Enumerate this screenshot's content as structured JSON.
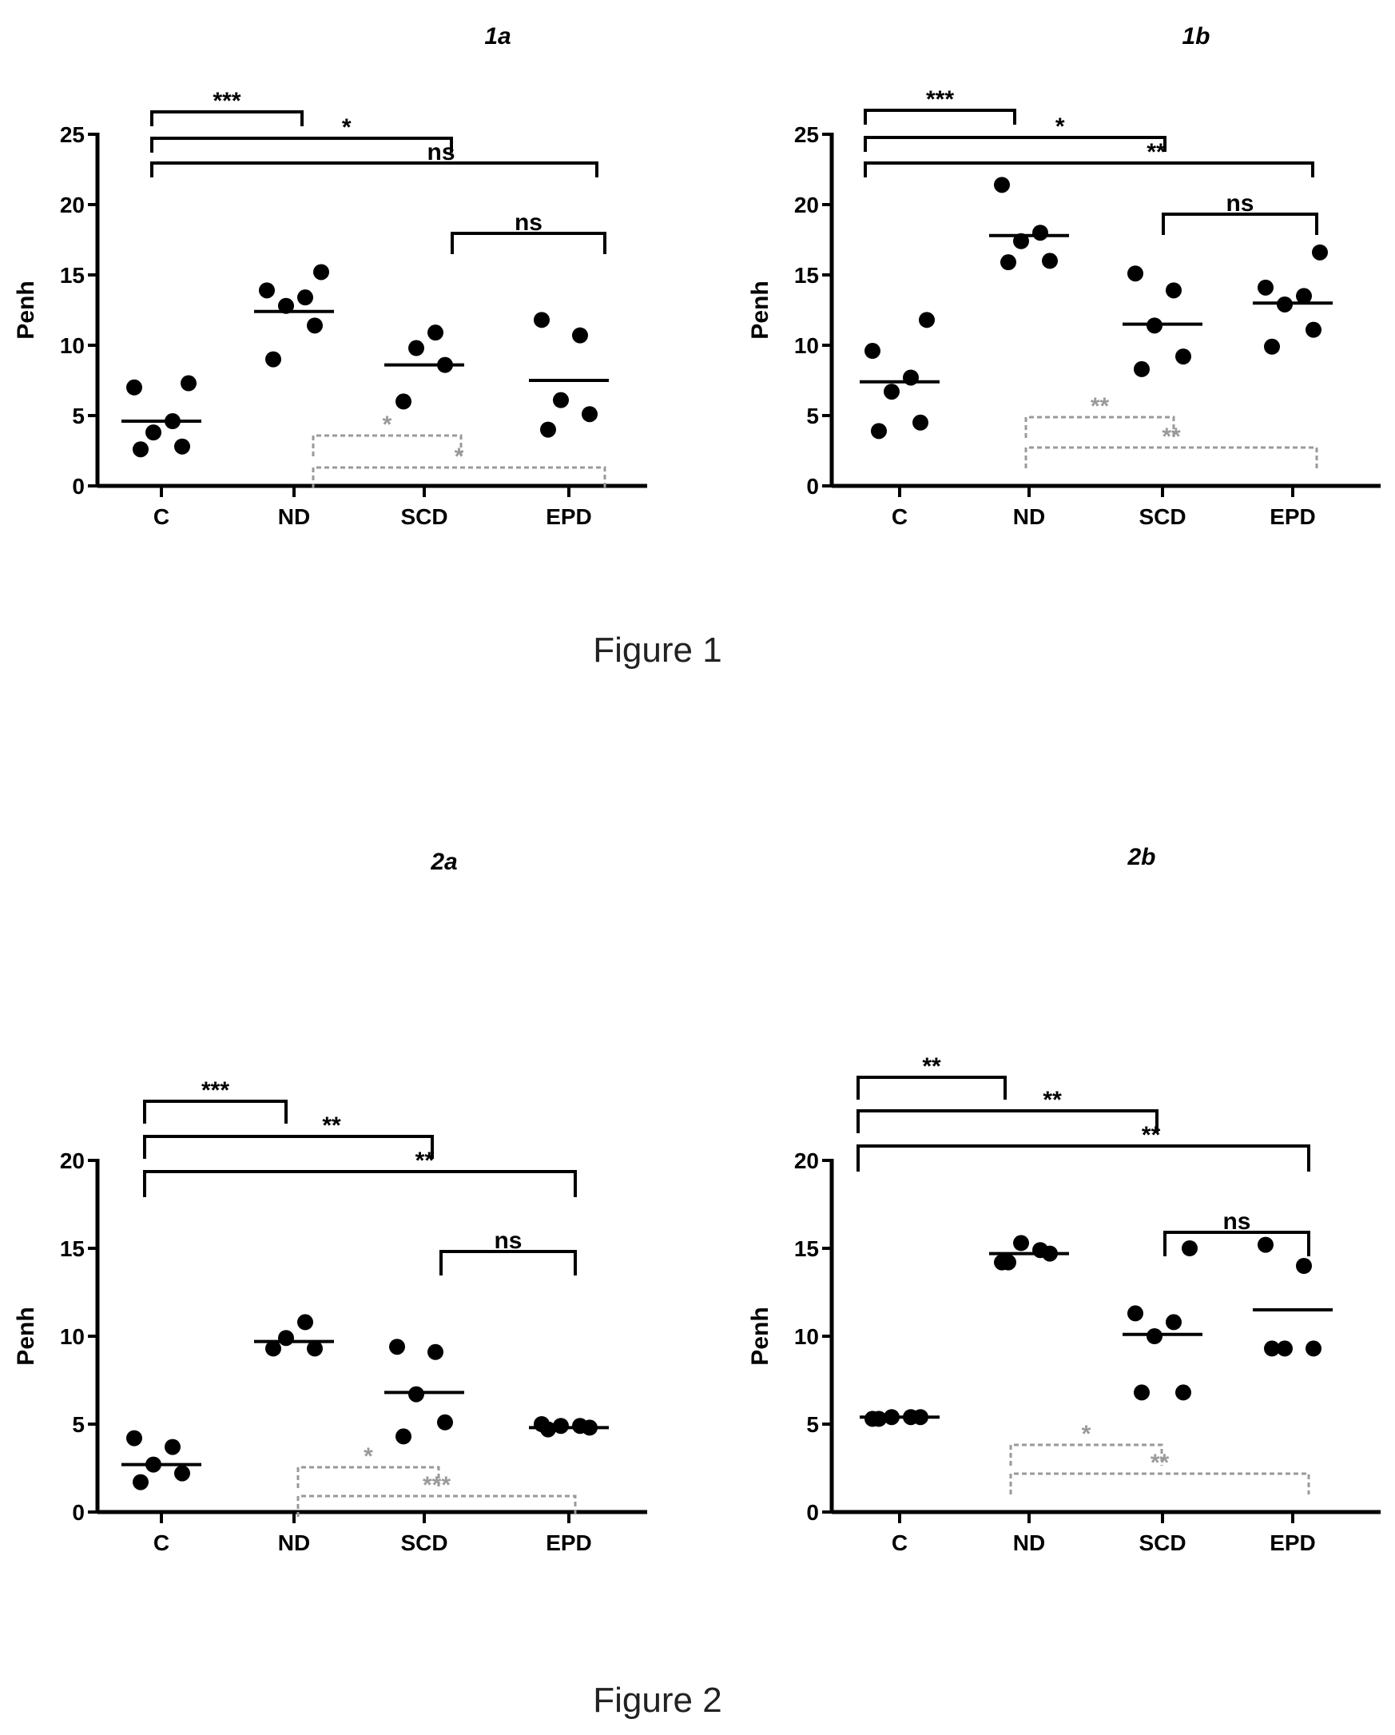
{
  "figures": [
    {
      "caption": "Figure 1"
    },
    {
      "caption": "Figure 2"
    }
  ],
  "chart_data": [
    {
      "type": "scatter",
      "title": "1a",
      "ylabel": "Penh",
      "ylim": [
        0,
        25
      ],
      "yticks": [
        "0",
        "5",
        "10",
        "15",
        "20",
        "25"
      ],
      "categories": [
        "C",
        "ND",
        "SCD",
        "EPD"
      ],
      "points": [
        [
          2.6,
          2.8,
          3.8,
          4.6,
          7.0,
          7.3
        ],
        [
          9.0,
          11.4,
          12.8,
          13.4,
          13.9,
          15.2
        ],
        [
          6.0,
          8.6,
          9.8,
          10.9
        ],
        [
          4.0,
          5.1,
          6.1,
          10.7,
          11.8
        ]
      ],
      "medians": [
        4.6,
        12.4,
        8.6,
        7.5
      ],
      "comparisons": [
        {
          "from": 0,
          "to": 1,
          "label": "***",
          "style": "solid"
        },
        {
          "from": 0,
          "to": 2,
          "label": "*",
          "style": "solid"
        },
        {
          "from": 0,
          "to": 3,
          "label": "ns",
          "style": "solid"
        },
        {
          "from": 2,
          "to": 3,
          "label": "ns",
          "style": "solid"
        },
        {
          "from": 1,
          "to": 2,
          "label": "*",
          "style": "dashed"
        },
        {
          "from": 1,
          "to": 3,
          "label": "*",
          "style": "dashed"
        }
      ],
      "style": {
        "marker_color": "#000000",
        "dashed_color": "#9a9a9a"
      }
    },
    {
      "type": "scatter",
      "title": "1b",
      "ylabel": "Penh",
      "ylim": [
        0,
        25
      ],
      "yticks": [
        "0",
        "5",
        "10",
        "15",
        "20",
        "25"
      ],
      "categories": [
        "C",
        "ND",
        "SCD",
        "EPD"
      ],
      "points": [
        [
          3.9,
          4.5,
          6.7,
          7.7,
          9.6,
          11.8
        ],
        [
          15.9,
          16.0,
          17.4,
          18.0,
          21.4
        ],
        [
          8.3,
          9.2,
          11.4,
          13.9,
          15.1
        ],
        [
          9.9,
          11.1,
          12.9,
          13.5,
          14.1,
          16.6
        ]
      ],
      "medians": [
        7.4,
        17.8,
        11.5,
        13.0
      ],
      "comparisons": [
        {
          "from": 0,
          "to": 1,
          "label": "***",
          "style": "solid"
        },
        {
          "from": 0,
          "to": 2,
          "label": "*",
          "style": "solid"
        },
        {
          "from": 0,
          "to": 3,
          "label": "**",
          "style": "solid"
        },
        {
          "from": 2,
          "to": 3,
          "label": "ns",
          "style": "solid"
        },
        {
          "from": 1,
          "to": 2,
          "label": "**",
          "style": "dashed"
        },
        {
          "from": 1,
          "to": 3,
          "label": "**",
          "style": "dashed"
        }
      ],
      "style": {
        "marker_color": "#000000",
        "dashed_color": "#9a9a9a"
      }
    },
    {
      "type": "scatter",
      "title": "2a",
      "ylabel": "Penh",
      "ylim": [
        0,
        20
      ],
      "yticks": [
        "0",
        "5",
        "10",
        "15",
        "20"
      ],
      "categories": [
        "C",
        "ND",
        "SCD",
        "EPD"
      ],
      "points": [
        [
          1.7,
          2.2,
          2.7,
          3.7,
          4.2
        ],
        [
          9.3,
          9.3,
          9.9,
          10.8
        ],
        [
          4.3,
          5.1,
          6.7,
          9.1,
          9.4
        ],
        [
          4.7,
          4.8,
          4.9,
          4.9,
          5.0
        ]
      ],
      "medians": [
        2.7,
        9.7,
        6.8,
        4.8
      ],
      "comparisons": [
        {
          "from": 0,
          "to": 1,
          "label": "***",
          "style": "solid"
        },
        {
          "from": 0,
          "to": 2,
          "label": "**",
          "style": "solid"
        },
        {
          "from": 0,
          "to": 3,
          "label": "**",
          "style": "solid"
        },
        {
          "from": 2,
          "to": 3,
          "label": "ns",
          "style": "solid"
        },
        {
          "from": 1,
          "to": 2,
          "label": "*",
          "style": "dashed"
        },
        {
          "from": 1,
          "to": 3,
          "label": "***",
          "style": "dashed"
        }
      ],
      "style": {
        "marker_color": "#000000",
        "dashed_color": "#9a9a9a"
      }
    },
    {
      "type": "scatter",
      "title": "2b",
      "ylabel": "Penh",
      "ylim": [
        0,
        20
      ],
      "yticks": [
        "0",
        "5",
        "10",
        "15",
        "20"
      ],
      "categories": [
        "C",
        "ND",
        "SCD",
        "EPD"
      ],
      "points": [
        [
          5.3,
          5.4,
          5.4,
          5.4,
          5.3
        ],
        [
          14.2,
          14.7,
          15.3,
          14.9,
          14.2
        ],
        [
          6.8,
          6.8,
          10.0,
          10.8,
          11.3,
          15.0
        ],
        [
          9.3,
          9.3,
          9.3,
          14.0,
          15.2
        ]
      ],
      "medians": [
        5.4,
        14.7,
        10.1,
        11.5
      ],
      "comparisons": [
        {
          "from": 0,
          "to": 1,
          "label": "**",
          "style": "solid"
        },
        {
          "from": 0,
          "to": 2,
          "label": "**",
          "style": "solid"
        },
        {
          "from": 0,
          "to": 3,
          "label": "**",
          "style": "solid"
        },
        {
          "from": 2,
          "to": 3,
          "label": "ns",
          "style": "solid"
        },
        {
          "from": 1,
          "to": 2,
          "label": "*",
          "style": "dashed"
        },
        {
          "from": 1,
          "to": 3,
          "label": "**",
          "style": "dashed"
        }
      ],
      "style": {
        "marker_color": "#000000",
        "dashed_color": "#9a9a9a"
      }
    }
  ]
}
